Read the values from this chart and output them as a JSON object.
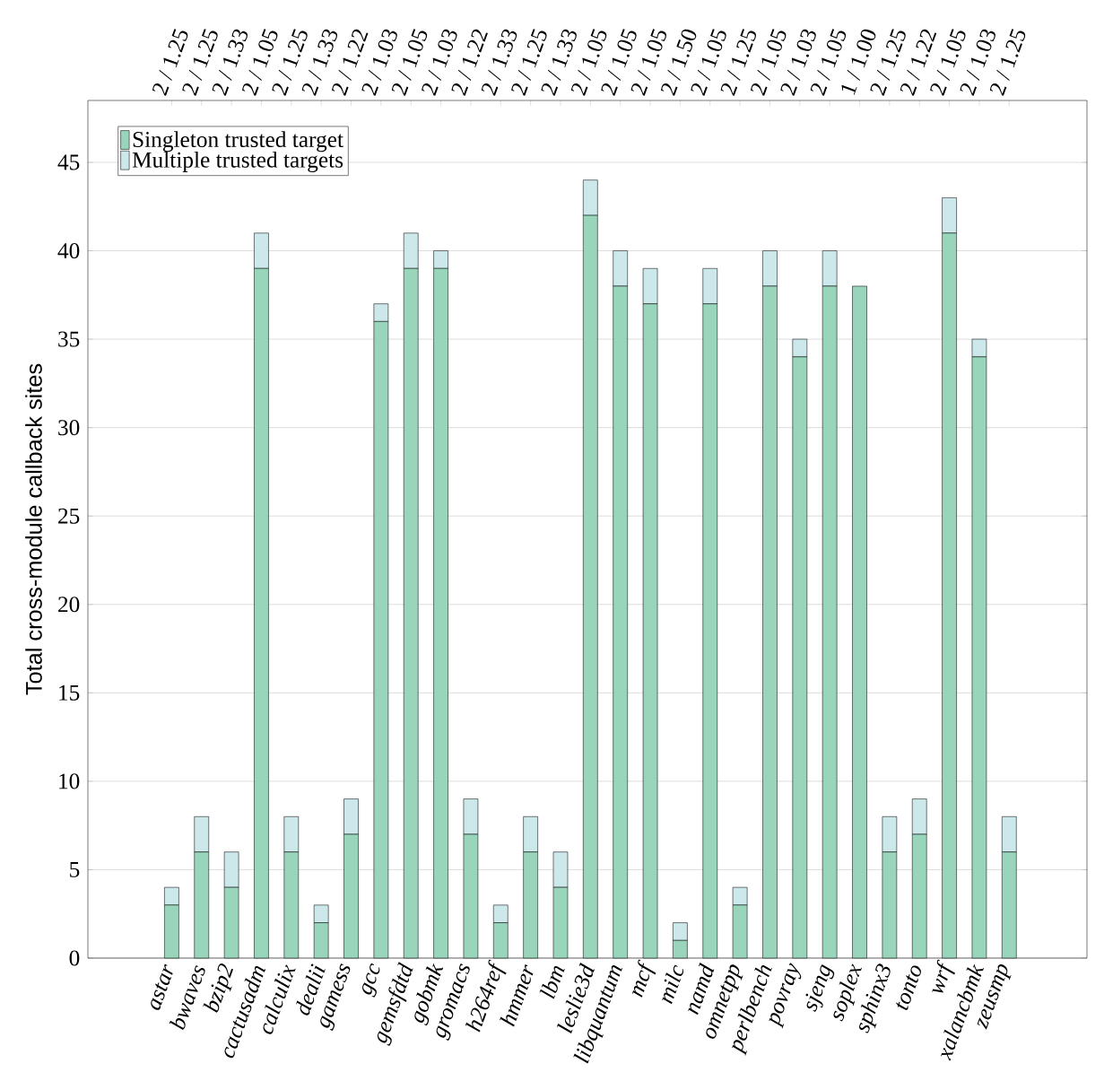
{
  "chart_data": {
    "type": "bar",
    "stacked": true,
    "ylabel": "Total cross-module callback sites",
    "categories": [
      "astar",
      "bwaves",
      "bzip2",
      "cactusadm",
      "calculix",
      "dealii",
      "gamess",
      "gcc",
      "gemsfdtd",
      "gobmk",
      "gromacs",
      "h264ref",
      "hmmer",
      "lbm",
      "leslie3d",
      "libquantum",
      "mcf",
      "milc",
      "namd",
      "omnetpp",
      "perlbench",
      "povray",
      "sjeng",
      "soplex",
      "sphinx3",
      "tonto",
      "wrf",
      "xalancbmk",
      "zeusmp"
    ],
    "series": [
      {
        "name": "Singleton trusted target",
        "color": "#99d5bb",
        "values": [
          3,
          6,
          4,
          39,
          6,
          2,
          7,
          36,
          39,
          39,
          7,
          2,
          6,
          4,
          42,
          38,
          37,
          1,
          37,
          3,
          38,
          34,
          38,
          38,
          6,
          7,
          41,
          34,
          6
        ]
      },
      {
        "name": "Multiple trusted targets",
        "color": "#cce8eb",
        "values": [
          1,
          2,
          2,
          2,
          2,
          1,
          2,
          1,
          2,
          1,
          2,
          1,
          2,
          2,
          2,
          2,
          2,
          1,
          2,
          1,
          2,
          1,
          2,
          0,
          2,
          2,
          2,
          1,
          2
        ]
      }
    ],
    "annotations": [
      {
        "text": "2 / 1.25",
        "x": "astar"
      },
      {
        "text": "2 / 1.25",
        "x": "bwaves"
      },
      {
        "text": "2 / 1.33",
        "x": "bzip2"
      },
      {
        "text": "2 / 1.05",
        "x": "cactusadm"
      },
      {
        "text": "2 / 1.25",
        "x": "calculix"
      },
      {
        "text": "2 / 1.33",
        "x": "dealii"
      },
      {
        "text": "2 / 1.22",
        "x": "gamess"
      },
      {
        "text": "2 / 1.03",
        "x": "gcc"
      },
      {
        "text": "2 / 1.05",
        "x": "gemsfdtd"
      },
      {
        "text": "2 / 1.03",
        "x": "gobmk"
      },
      {
        "text": "2 / 1.22",
        "x": "gromacs"
      },
      {
        "text": "2 / 1.33",
        "x": "h264ref"
      },
      {
        "text": "2 / 1.25",
        "x": "hmmer"
      },
      {
        "text": "2 / 1.33",
        "x": "lbm"
      },
      {
        "text": "2 / 1.05",
        "x": "leslie3d"
      },
      {
        "text": "2 / 1.05",
        "x": "libquantum"
      },
      {
        "text": "2 / 1.05",
        "x": "mcf"
      },
      {
        "text": "2 / 1.50",
        "x": "milc"
      },
      {
        "text": "2 / 1.05",
        "x": "namd"
      },
      {
        "text": "2 / 1.25",
        "x": "omnetpp"
      },
      {
        "text": "2 / 1.05",
        "x": "perlbench"
      },
      {
        "text": "2 / 1.03",
        "x": "povray"
      },
      {
        "text": "2 / 1.05",
        "x": "sjeng"
      },
      {
        "text": "1 / 1.00",
        "x": "soplex"
      },
      {
        "text": "2 / 1.25",
        "x": "sphinx3"
      },
      {
        "text": "2 / 1.22",
        "x": "tonto"
      },
      {
        "text": "2 / 1.05",
        "x": "wrf"
      },
      {
        "text": "2 / 1.03",
        "x": "xalancbmk"
      },
      {
        "text": "2 / 1.25",
        "x": "zeusmp"
      }
    ],
    "ylim": [
      0,
      48.5
    ],
    "yticks": [
      0,
      5,
      10,
      15,
      20,
      25,
      30,
      35,
      40,
      45
    ],
    "grid": "y",
    "legend": "top left"
  }
}
